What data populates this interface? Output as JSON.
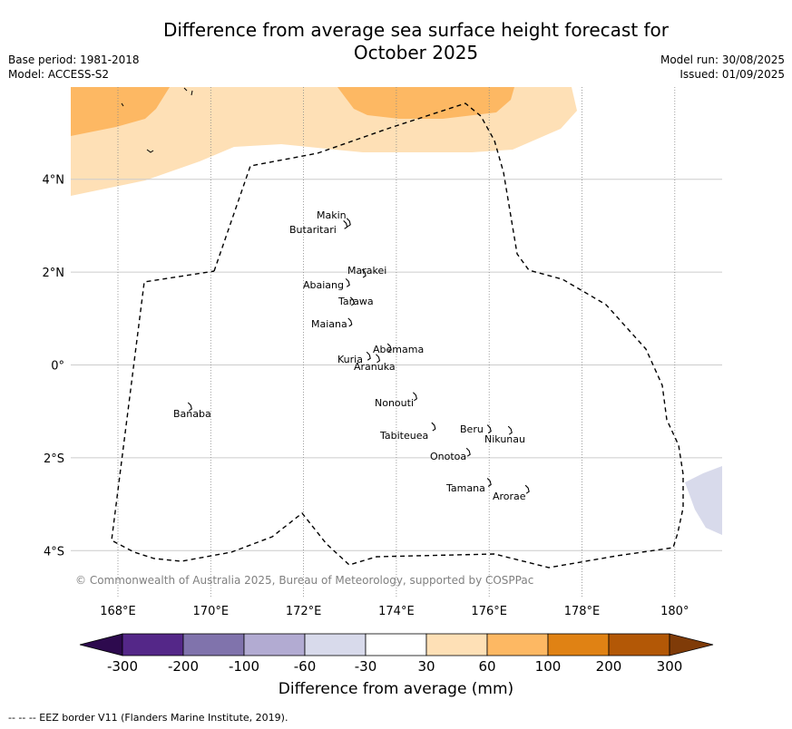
{
  "title_line1": "Difference from average sea surface height forecast for",
  "title_line2": "October 2025",
  "meta_left": {
    "base_period": "Base period: 1981-2018",
    "model": "Model: ACCESS-S2"
  },
  "meta_right": {
    "model_run": "Model run: 30/08/2025",
    "issued": "Issued: 01/09/2025"
  },
  "map": {
    "lon_range": [
      167,
      181
    ],
    "lat_range": [
      -5,
      6
    ],
    "x_ticks": [
      {
        "lon": 168,
        "label": "168°E"
      },
      {
        "lon": 170,
        "label": "170°E"
      },
      {
        "lon": 172,
        "label": "172°E"
      },
      {
        "lon": 174,
        "label": "174°E"
      },
      {
        "lon": 176,
        "label": "176°E"
      },
      {
        "lon": 178,
        "label": "178°E"
      },
      {
        "lon": 180,
        "label": "180°"
      }
    ],
    "y_ticks": [
      {
        "lat": 4,
        "label": "4°N"
      },
      {
        "lat": 2,
        "label": "2°N"
      },
      {
        "lat": 0,
        "label": "0°"
      },
      {
        "lat": -2,
        "label": "2°S"
      },
      {
        "lat": -4,
        "label": "4°S"
      }
    ],
    "islands": [
      {
        "name": "Makin",
        "lon": 172.97,
        "lat": 3.1
      },
      {
        "name": "Butaritari",
        "lon": 172.9,
        "lat": 3.05
      },
      {
        "name": "Marakei",
        "lon": 173.3,
        "lat": 2.0
      },
      {
        "name": "Abaiang",
        "lon": 172.95,
        "lat": 1.8
      },
      {
        "name": "Tarawa",
        "lon": 173.05,
        "lat": 1.4
      },
      {
        "name": "Maiana",
        "lon": 173.0,
        "lat": 0.95
      },
      {
        "name": "Abemama",
        "lon": 173.85,
        "lat": 0.4
      },
      {
        "name": "Kuria",
        "lon": 173.4,
        "lat": 0.22
      },
      {
        "name": "Aranuka",
        "lon": 173.6,
        "lat": 0.17
      },
      {
        "name": "Nonouti",
        "lon": 174.4,
        "lat": -0.65
      },
      {
        "name": "Banaba",
        "lon": 169.55,
        "lat": -0.87
      },
      {
        "name": "Tabiteuea",
        "lon": 174.8,
        "lat": -1.3
      },
      {
        "name": "Beru",
        "lon": 176.0,
        "lat": -1.35
      },
      {
        "name": "Nikunau",
        "lon": 176.45,
        "lat": -1.38
      },
      {
        "name": "Onotoa",
        "lon": 175.55,
        "lat": -1.85
      },
      {
        "name": "Tamana",
        "lon": 176.0,
        "lat": -2.5
      },
      {
        "name": "Arorae",
        "lon": 176.82,
        "lat": -2.65
      }
    ],
    "copyright": "© Commonwealth of Australia 2025, Bureau of Meteorology, supported by COSPPac"
  },
  "colorbar": {
    "label": "Difference from average (mm)",
    "ticks": [
      "-300",
      "-200",
      "-100",
      "-60",
      "-30",
      "30",
      "60",
      "100",
      "200",
      "300"
    ],
    "under_color": "#2d0a4e",
    "over_color": "#7f3b08",
    "colors": [
      "#542788",
      "#8073ac",
      "#b2abd2",
      "#d8daeb",
      "#ffffff",
      "#fee0b6",
      "#fdb863",
      "#e08214",
      "#b35806"
    ]
  },
  "footnote": "--  --  -- EEZ border V11 (Flanders Marine Institute, 2019)."
}
